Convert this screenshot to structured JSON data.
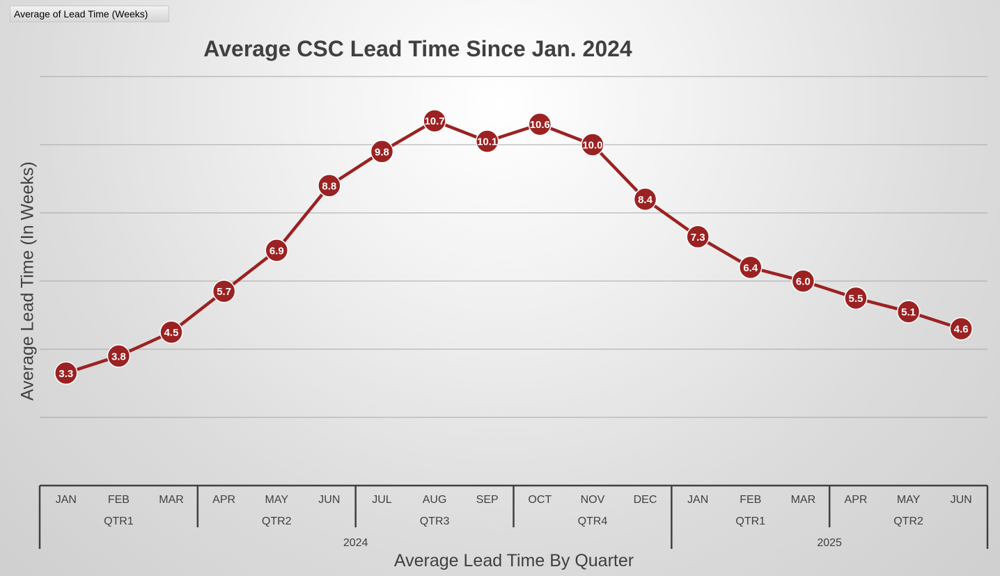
{
  "field_button": {
    "label": "Average of Lead Time (Weeks)"
  },
  "chart_data": {
    "type": "line",
    "title": "Average CSC Lead Time Since Jan. 2024",
    "ylabel": "Average Lead Time (In Weeks)",
    "xlabel": "Average Lead Time By Quarter",
    "ylim": [
      0,
      12
    ],
    "y_gridlines": [
      2,
      4,
      6,
      8,
      10,
      12
    ],
    "grid": true,
    "legend": "none",
    "line_color": "#9b2222",
    "categories": [
      "JAN",
      "FEB",
      "MAR",
      "APR",
      "MAY",
      "JUN",
      "JUL",
      "AUG",
      "SEP",
      "OCT",
      "NOV",
      "DEC",
      "JAN",
      "FEB",
      "MAR",
      "APR",
      "MAY",
      "JUN"
    ],
    "quarter_groups": [
      {
        "label": "QTR1",
        "count": 3
      },
      {
        "label": "QTR2",
        "count": 3
      },
      {
        "label": "QTR3",
        "count": 3
      },
      {
        "label": "QTR4",
        "count": 3
      },
      {
        "label": "QTR1",
        "count": 3
      },
      {
        "label": "QTR2",
        "count": 3
      }
    ],
    "year_groups": [
      {
        "label": "2024",
        "count": 12
      },
      {
        "label": "2025",
        "count": 6
      }
    ],
    "series": [
      {
        "values": [
          3.3,
          3.8,
          4.5,
          5.7,
          6.9,
          8.8,
          9.8,
          10.7,
          10.1,
          10.6,
          10.0,
          8.4,
          7.3,
          6.4,
          6.0,
          5.5,
          5.1,
          4.6
        ]
      }
    ]
  }
}
